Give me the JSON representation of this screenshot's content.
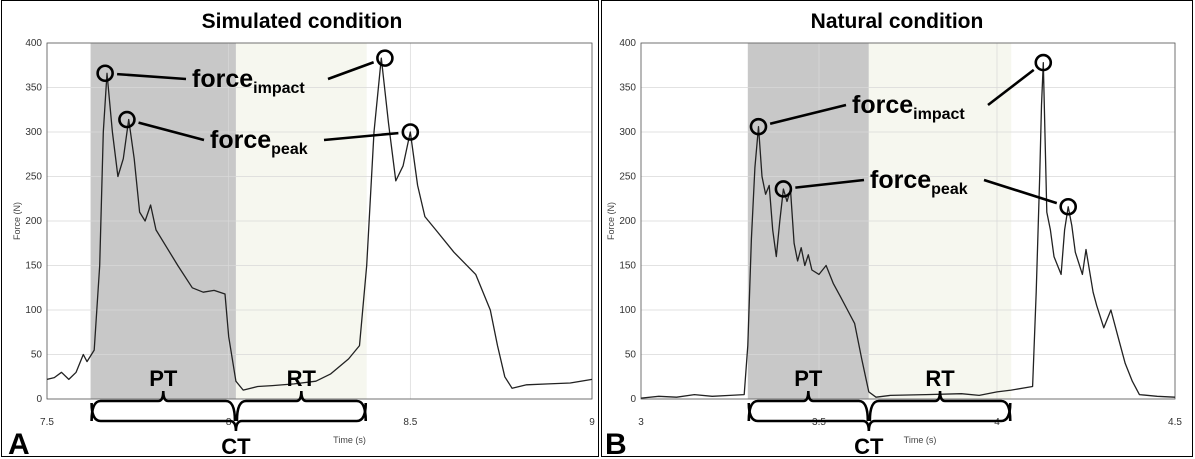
{
  "chart_data": [
    {
      "type": "line",
      "panel_letter": "A",
      "title": "Simulated condition",
      "xlabel": "Time (s)",
      "ylabel": "Force (N)",
      "xlim": [
        7.5,
        9
      ],
      "ylim": [
        0,
        400
      ],
      "x_ticks": [
        "7.5",
        "8",
        "8.5",
        "9"
      ],
      "y_ticks": [
        "0",
        "50",
        "100",
        "150",
        "200",
        "250",
        "300",
        "350",
        "400"
      ],
      "grid": true,
      "regions": [
        {
          "label": "PT",
          "x": [
            7.62,
            8.02
          ],
          "color": "#c8c8c8"
        },
        {
          "label": "RT",
          "x": [
            8.02,
            8.38
          ],
          "color": "#f6f7ef"
        }
      ],
      "span_label": "CT",
      "annotations": [
        {
          "text": "force",
          "sub": "impact",
          "points": [
            [
              7.66,
              366
            ],
            [
              8.43,
              383
            ]
          ]
        },
        {
          "text": "force",
          "sub": "peak",
          "points": [
            [
              7.72,
              314
            ],
            [
              8.5,
              300
            ]
          ]
        }
      ],
      "series": [
        {
          "color": "#222222",
          "points": [
            [
              7.5,
              22
            ],
            [
              7.52,
              24
            ],
            [
              7.54,
              30
            ],
            [
              7.56,
              22
            ],
            [
              7.58,
              30
            ],
            [
              7.6,
              50
            ],
            [
              7.61,
              42
            ],
            [
              7.63,
              55
            ],
            [
              7.645,
              150
            ],
            [
              7.655,
              300
            ],
            [
              7.665,
              366
            ],
            [
              7.68,
              300
            ],
            [
              7.695,
              250
            ],
            [
              7.71,
              270
            ],
            [
              7.725,
              314
            ],
            [
              7.74,
              270
            ],
            [
              7.755,
              210
            ],
            [
              7.77,
              200
            ],
            [
              7.785,
              218
            ],
            [
              7.8,
              190
            ],
            [
              7.83,
              170
            ],
            [
              7.86,
              150
            ],
            [
              7.9,
              125
            ],
            [
              7.93,
              120
            ],
            [
              7.96,
              122
            ],
            [
              7.99,
              118
            ],
            [
              8.0,
              70
            ],
            [
              8.02,
              20
            ],
            [
              8.04,
              10
            ],
            [
              8.08,
              14
            ],
            [
              8.12,
              15
            ],
            [
              8.18,
              17
            ],
            [
              8.24,
              20
            ],
            [
              8.28,
              28
            ],
            [
              8.33,
              45
            ],
            [
              8.36,
              60
            ],
            [
              8.38,
              150
            ],
            [
              8.4,
              300
            ],
            [
              8.42,
              383
            ],
            [
              8.44,
              310
            ],
            [
              8.46,
              245
            ],
            [
              8.48,
              262
            ],
            [
              8.5,
              300
            ],
            [
              8.52,
              240
            ],
            [
              8.54,
              205
            ],
            [
              8.57,
              190
            ],
            [
              8.62,
              165
            ],
            [
              8.68,
              140
            ],
            [
              8.72,
              100
            ],
            [
              8.74,
              60
            ],
            [
              8.76,
              25
            ],
            [
              8.78,
              12
            ],
            [
              8.82,
              16
            ],
            [
              8.88,
              17
            ],
            [
              8.94,
              18
            ],
            [
              9.0,
              22
            ]
          ]
        }
      ]
    },
    {
      "type": "line",
      "panel_letter": "B",
      "title": "Natural condition",
      "xlabel": "Time (s)",
      "ylabel": "Force (N)",
      "xlim": [
        3,
        4.5
      ],
      "ylim": [
        0,
        400
      ],
      "x_ticks": [
        "3",
        "3.5",
        "4",
        "4.5"
      ],
      "y_ticks": [
        "0",
        "50",
        "100",
        "150",
        "200",
        "250",
        "300",
        "350",
        "400"
      ],
      "grid": true,
      "regions": [
        {
          "label": "PT",
          "x": [
            3.3,
            3.64
          ],
          "color": "#c8c8c8"
        },
        {
          "label": "RT",
          "x": [
            3.64,
            4.04
          ],
          "color": "#f6f7ef"
        }
      ],
      "span_label": "CT",
      "annotations": [
        {
          "text": "force",
          "sub": "impact",
          "points": [
            [
              3.33,
              306
            ],
            [
              4.13,
              378
            ]
          ]
        },
        {
          "text": "force",
          "sub": "peak",
          "points": [
            [
              3.4,
              236
            ],
            [
              4.2,
              216
            ]
          ]
        }
      ],
      "series": [
        {
          "color": "#222222",
          "points": [
            [
              3.0,
              1
            ],
            [
              3.05,
              3
            ],
            [
              3.1,
              2
            ],
            [
              3.15,
              5
            ],
            [
              3.2,
              3
            ],
            [
              3.25,
              4
            ],
            [
              3.29,
              5
            ],
            [
              3.3,
              60
            ],
            [
              3.31,
              180
            ],
            [
              3.32,
              260
            ],
            [
              3.33,
              306
            ],
            [
              3.34,
              250
            ],
            [
              3.35,
              230
            ],
            [
              3.36,
              240
            ],
            [
              3.37,
              190
            ],
            [
              3.38,
              160
            ],
            [
              3.39,
              200
            ],
            [
              3.4,
              236
            ],
            [
              3.41,
              222
            ],
            [
              3.42,
              235
            ],
            [
              3.43,
              175
            ],
            [
              3.44,
              155
            ],
            [
              3.45,
              170
            ],
            [
              3.46,
              150
            ],
            [
              3.47,
              162
            ],
            [
              3.48,
              145
            ],
            [
              3.5,
              140
            ],
            [
              3.52,
              150
            ],
            [
              3.54,
              130
            ],
            [
              3.56,
              115
            ],
            [
              3.58,
              100
            ],
            [
              3.6,
              85
            ],
            [
              3.62,
              45
            ],
            [
              3.64,
              8
            ],
            [
              3.66,
              2
            ],
            [
              3.7,
              4
            ],
            [
              3.8,
              5
            ],
            [
              3.9,
              6
            ],
            [
              3.95,
              4
            ],
            [
              4.0,
              8
            ],
            [
              4.04,
              10
            ],
            [
              4.1,
              14
            ],
            [
              4.11,
              120
            ],
            [
              4.12,
              250
            ],
            [
              4.125,
              330
            ],
            [
              4.13,
              378
            ],
            [
              4.14,
              210
            ],
            [
              4.15,
              190
            ],
            [
              4.16,
              160
            ],
            [
              4.18,
              140
            ],
            [
              4.19,
              190
            ],
            [
              4.2,
              216
            ],
            [
              4.21,
              195
            ],
            [
              4.22,
              165
            ],
            [
              4.24,
              140
            ],
            [
              4.25,
              168
            ],
            [
              4.27,
              120
            ],
            [
              4.28,
              105
            ],
            [
              4.3,
              80
            ],
            [
              4.32,
              100
            ],
            [
              4.34,
              70
            ],
            [
              4.36,
              40
            ],
            [
              4.38,
              20
            ],
            [
              4.4,
              5
            ],
            [
              4.45,
              3
            ],
            [
              4.5,
              2
            ]
          ]
        }
      ]
    }
  ]
}
